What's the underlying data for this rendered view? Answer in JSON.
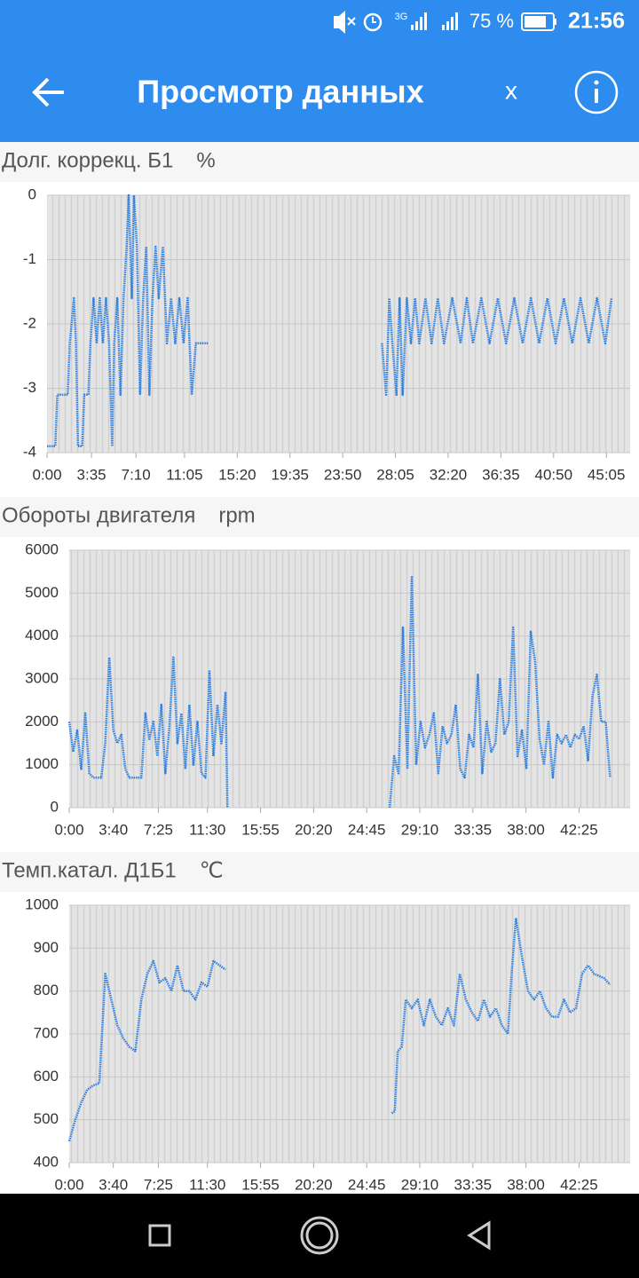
{
  "status_bar": {
    "network": "3G",
    "battery": "75 %",
    "time": "21:56"
  },
  "app_bar": {
    "title": "Просмотр данных",
    "action": "x"
  },
  "chart_data": [
    {
      "type": "line",
      "title": "Долг. коррекц. Б1",
      "unit": "%",
      "x": [
        0,
        40,
        50,
        100,
        110,
        130,
        140,
        150,
        170,
        180,
        200,
        210,
        225,
        240,
        255,
        270,
        285,
        300,
        315,
        325,
        340,
        355,
        370,
        385,
        395,
        410,
        420,
        435,
        450,
        465,
        480,
        495,
        510,
        525,
        540,
        560,
        580,
        600,
        620,
        640,
        660,
        680,
        700,
        720,
        760,
        780,
        1200,
        1620,
        1640,
        1655,
        1670,
        1690,
        1705,
        1720,
        1740,
        1760,
        1780,
        1800,
        1830,
        1860,
        1890,
        1920,
        1960,
        2000,
        2030,
        2060,
        2100,
        2140,
        2180,
        2220,
        2260,
        2300,
        2340,
        2380,
        2420,
        2460,
        2500,
        2540,
        2580,
        2620,
        2660,
        2700,
        2730
      ],
      "series": [
        {
          "color": "#2f7fe0",
          "values": [
            -3.9,
            -3.9,
            -3.1,
            -3.1,
            -2.3,
            -1.6,
            -2.3,
            -3.9,
            -3.9,
            -3.1,
            -3.1,
            -2.3,
            -1.6,
            -2.3,
            -1.6,
            -2.3,
            -1.6,
            -2.3,
            -3.9,
            -2.3,
            -1.6,
            -3.1,
            -1.6,
            -0.8,
            0,
            -1.6,
            0,
            -0.8,
            -3.1,
            -1.6,
            -0.8,
            -3.1,
            -1.6,
            -0.8,
            -1.6,
            -0.8,
            -2.3,
            -1.6,
            -2.3,
            -1.6,
            -2.3,
            -1.6,
            -3.1,
            -2.3,
            -2.3,
            -2.3,
            null,
            -2.3,
            -3.1,
            -1.6,
            -2.3,
            -3.1,
            -1.6,
            -3.1,
            -1.6,
            -2.3,
            -1.6,
            -2.3,
            -1.6,
            -2.3,
            -1.6,
            -2.3,
            -1.6,
            -2.3,
            -1.6,
            -2.3,
            -1.6,
            -2.3,
            -1.6,
            -2.3,
            -1.6,
            -2.3,
            -1.6,
            -2.3,
            -1.6,
            -2.3,
            -1.6,
            -2.3,
            -1.6,
            -2.3,
            -1.6,
            -2.3,
            -1.6
          ]
        }
      ],
      "xlim": [
        0,
        2820
      ],
      "xticks": [
        {
          "value": 0,
          "label": "0:00"
        },
        {
          "value": 215,
          "label": "3:35"
        },
        {
          "value": 430,
          "label": "7:10"
        },
        {
          "value": 665,
          "label": "11:05"
        },
        {
          "value": 920,
          "label": "15:20"
        },
        {
          "value": 1175,
          "label": "19:35"
        },
        {
          "value": 1430,
          "label": "23:50"
        },
        {
          "value": 1685,
          "label": "28:05"
        },
        {
          "value": 1940,
          "label": "32:20"
        },
        {
          "value": 2195,
          "label": "36:35"
        },
        {
          "value": 2450,
          "label": "40:50"
        },
        {
          "value": 2705,
          "label": "45:05"
        }
      ],
      "ylim": [
        -4,
        0
      ],
      "yticks": [
        0,
        -1,
        -2,
        -3,
        -4
      ],
      "grid": true
    },
    {
      "type": "line",
      "title": "Обороты двигателя",
      "unit": "rpm",
      "x": [
        0,
        20,
        40,
        60,
        80,
        100,
        120,
        140,
        160,
        180,
        200,
        220,
        240,
        260,
        280,
        300,
        320,
        340,
        360,
        380,
        400,
        420,
        440,
        460,
        480,
        500,
        520,
        540,
        560,
        580,
        600,
        620,
        640,
        660,
        680,
        700,
        720,
        740,
        760,
        780,
        790,
        1200,
        1600,
        1622,
        1644,
        1666,
        1688,
        1710,
        1732,
        1754,
        1776,
        1798,
        1820,
        1842,
        1864,
        1886,
        1908,
        1930,
        1952,
        1974,
        1996,
        2018,
        2040,
        2062,
        2084,
        2106,
        2128,
        2150,
        2172,
        2194,
        2216,
        2238,
        2260,
        2282,
        2304,
        2326,
        2348,
        2370,
        2392,
        2414,
        2436,
        2458,
        2480,
        2502,
        2524,
        2546,
        2568,
        2590,
        2612,
        2634,
        2656,
        2678,
        2700
      ],
      "series": [
        {
          "color": "#2f7fe0",
          "values": [
            2000,
            1300,
            1800,
            900,
            2200,
            800,
            700,
            700,
            700,
            1500,
            3500,
            1800,
            1500,
            1700,
            900,
            700,
            700,
            700,
            700,
            2200,
            1600,
            2000,
            1200,
            2400,
            800,
            1900,
            3500,
            1500,
            2200,
            900,
            2400,
            1000,
            2000,
            800,
            700,
            3200,
            1200,
            2400,
            1500,
            2700,
            0,
            null,
            0,
            1200,
            800,
            4200,
            900,
            5400,
            1000,
            2000,
            1400,
            1700,
            2200,
            800,
            1900,
            1500,
            1700,
            2400,
            900,
            700,
            1700,
            1400,
            3100,
            800,
            2000,
            1300,
            1500,
            3000,
            1700,
            2000,
            4200,
            1200,
            1800,
            900,
            4100,
            3400,
            1600,
            1000,
            2000,
            700,
            1700,
            1500,
            1700,
            1400,
            1700,
            1600,
            1900,
            1100,
            2600,
            3100,
            2000,
            2000,
            700
          ]
        }
      ],
      "xlim": [
        0,
        2800
      ],
      "xticks": [
        {
          "value": 0,
          "label": "0:00"
        },
        {
          "value": 220,
          "label": "3:40"
        },
        {
          "value": 445,
          "label": "7:25"
        },
        {
          "value": 690,
          "label": "11:30"
        },
        {
          "value": 955,
          "label": "15:55"
        },
        {
          "value": 1220,
          "label": "20:20"
        },
        {
          "value": 1485,
          "label": "24:45"
        },
        {
          "value": 1750,
          "label": "29:10"
        },
        {
          "value": 2015,
          "label": "33:35"
        },
        {
          "value": 2280,
          "label": "38:00"
        },
        {
          "value": 2545,
          "label": "42:25"
        }
      ],
      "ylim": [
        0,
        6000
      ],
      "yticks": [
        0,
        1000,
        2000,
        3000,
        4000,
        5000,
        6000
      ],
      "grid": true
    },
    {
      "type": "line",
      "title": "Темп.катал. Д1Б1",
      "unit": "℃",
      "x": [
        0,
        30,
        60,
        90,
        120,
        150,
        180,
        210,
        240,
        270,
        300,
        330,
        360,
        390,
        420,
        450,
        480,
        510,
        540,
        570,
        600,
        630,
        660,
        690,
        720,
        750,
        780,
        1200,
        1610,
        1625,
        1640,
        1660,
        1680,
        1710,
        1740,
        1770,
        1800,
        1830,
        1860,
        1890,
        1920,
        1950,
        1980,
        2010,
        2040,
        2070,
        2100,
        2130,
        2160,
        2190,
        2210,
        2230,
        2260,
        2290,
        2320,
        2350,
        2380,
        2410,
        2440,
        2470,
        2500,
        2530,
        2560,
        2590,
        2620,
        2670,
        2700
      ],
      "series": [
        {
          "color": "#2f7fe0",
          "values": [
            450,
            500,
            540,
            570,
            580,
            585,
            840,
            780,
            720,
            690,
            670,
            660,
            780,
            840,
            870,
            820,
            830,
            800,
            860,
            800,
            800,
            780,
            820,
            810,
            870,
            860,
            850,
            null,
            515,
            520,
            660,
            670,
            780,
            760,
            780,
            720,
            780,
            740,
            720,
            760,
            720,
            840,
            780,
            750,
            730,
            780,
            740,
            760,
            720,
            700,
            850,
            970,
            880,
            800,
            780,
            800,
            760,
            740,
            740,
            780,
            750,
            760,
            840,
            860,
            840,
            830,
            815
          ]
        }
      ],
      "xlim": [
        0,
        2800
      ],
      "xticks": [
        {
          "value": 0,
          "label": "0:00"
        },
        {
          "value": 220,
          "label": "3:40"
        },
        {
          "value": 445,
          "label": "7:25"
        },
        {
          "value": 690,
          "label": "11:30"
        },
        {
          "value": 955,
          "label": "15:55"
        },
        {
          "value": 1220,
          "label": "20:20"
        },
        {
          "value": 1485,
          "label": "24:45"
        },
        {
          "value": 1750,
          "label": "29:10"
        },
        {
          "value": 2015,
          "label": "33:35"
        },
        {
          "value": 2280,
          "label": "38:00"
        },
        {
          "value": 2545,
          "label": "42:25"
        }
      ],
      "ylim": [
        400,
        1000
      ],
      "yticks": [
        400,
        500,
        600,
        700,
        800,
        900,
        1000
      ],
      "grid": true
    }
  ]
}
